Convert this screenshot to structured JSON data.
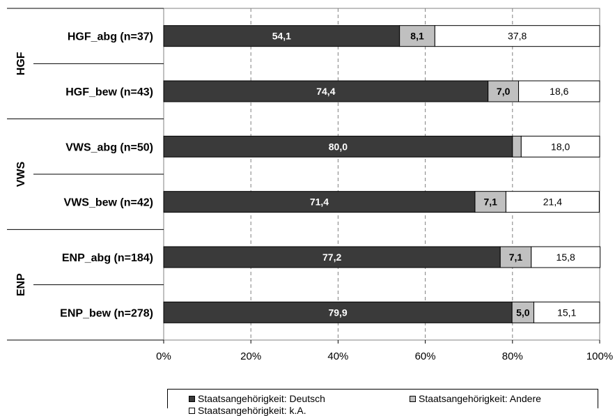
{
  "chart_data": {
    "type": "bar",
    "orientation": "horizontal",
    "stacked": true,
    "groups": [
      {
        "label": "HGF",
        "categories": [
          "HGF_abg (n=37)",
          "HGF_bew (n=43)"
        ]
      },
      {
        "label": "VWS",
        "categories": [
          "VWS_abg (n=50)",
          "VWS_bew (n=42)"
        ]
      },
      {
        "label": "ENP",
        "categories": [
          "ENP_abg (n=184)",
          "ENP_bew (n=278)"
        ]
      }
    ],
    "categories": [
      "HGF_abg (n=37)",
      "HGF_bew (n=43)",
      "VWS_abg (n=50)",
      "VWS_bew (n=42)",
      "ENP_abg (n=184)",
      "ENP_bew (n=278)"
    ],
    "series": [
      {
        "name": "Staatsangehörigkeit: Deutsch",
        "color": "#3a3a3a",
        "values": [
          54.1,
          74.4,
          80.0,
          71.4,
          77.2,
          79.9
        ],
        "labels": [
          "54,1",
          "74,4",
          "80,0",
          "71,4",
          "77,2",
          "79,9"
        ]
      },
      {
        "name": "Staatsangehörigkeit: Andere",
        "color": "#c0c0c0",
        "values": [
          8.1,
          7.0,
          2.0,
          7.1,
          7.1,
          5.0
        ],
        "labels": [
          "8,1",
          "7,0",
          "",
          "7,1",
          "7,1",
          "5,0"
        ]
      },
      {
        "name": "Staatsangehörigkeit: k.A.",
        "color": "#ffffff",
        "values": [
          37.8,
          18.6,
          18.0,
          21.4,
          15.8,
          15.1
        ],
        "labels": [
          "37,8",
          "18,6",
          "18,0",
          "21,4",
          "15,8",
          "15,1"
        ]
      }
    ],
    "xlim": [
      0,
      100
    ],
    "xticks": [
      "0%",
      "20%",
      "40%",
      "60%",
      "80%",
      "100%"
    ],
    "grid": "vertical-dashed",
    "legend": "bottom"
  }
}
